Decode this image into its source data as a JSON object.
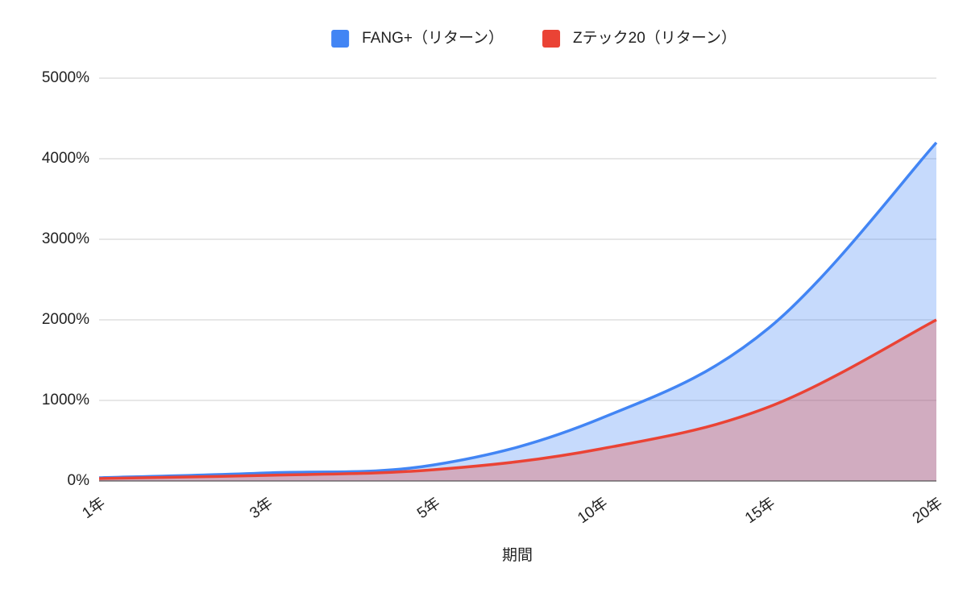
{
  "chart_data": {
    "type": "area",
    "x_label": "期間",
    "categories": [
      "1年",
      "3年",
      "5年",
      "10年",
      "15年",
      "20年"
    ],
    "series": [
      {
        "name": "FANG+（リターン）",
        "color": "#4285f4",
        "values": [
          40,
          100,
          200,
          780,
          1900,
          4200
        ]
      },
      {
        "name": "Zテック20（リターン）",
        "color": "#ea4335",
        "values": [
          30,
          70,
          140,
          400,
          920,
          2000
        ]
      }
    ],
    "ylim": [
      0,
      5000
    ],
    "yticks": [
      {
        "value": 0,
        "label": "0%"
      },
      {
        "value": 1000,
        "label": "1000%"
      },
      {
        "value": 2000,
        "label": "2000%"
      },
      {
        "value": 3000,
        "label": "3000%"
      },
      {
        "value": 4000,
        "label": "4000%"
      },
      {
        "value": 5000,
        "label": "5000%"
      }
    ],
    "grid": true,
    "legend": "top"
  }
}
